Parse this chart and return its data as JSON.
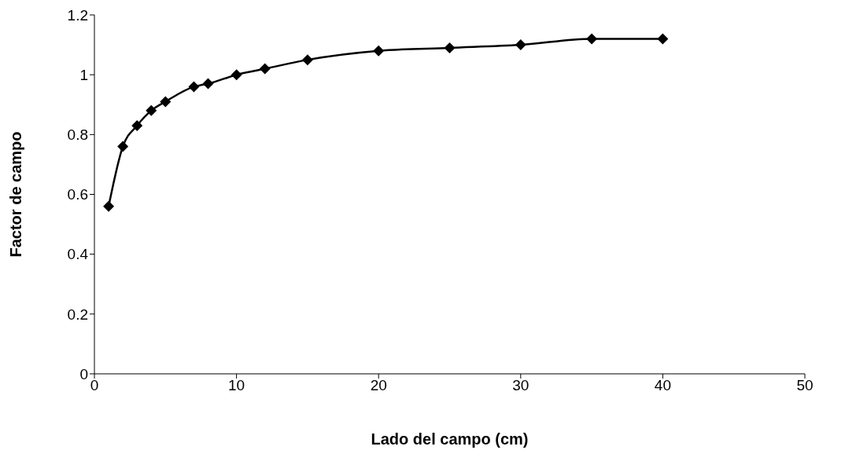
{
  "chart_data": {
    "type": "line",
    "xlabel": "Lado del campo (cm)",
    "ylabel": "Factor de campo",
    "x": [
      1,
      2,
      3,
      4,
      5,
      7,
      8,
      10,
      12,
      15,
      20,
      25,
      30,
      35,
      40
    ],
    "series": [
      {
        "color": "#000000",
        "values": [
          0.56,
          0.76,
          0.83,
          0.88,
          0.91,
          0.96,
          0.97,
          1.0,
          1.02,
          1.05,
          1.08,
          1.09,
          1.1,
          1.12,
          1.12
        ]
      }
    ],
    "xlim": [
      0,
      50
    ],
    "xticks": [
      0,
      10,
      20,
      30,
      40,
      50
    ],
    "ylim": [
      0,
      1.2
    ],
    "yticks": [
      0,
      0.2,
      0.4,
      0.6,
      0.8,
      1,
      1.2
    ],
    "grid": false,
    "legend": false,
    "marker": "diamond",
    "line_style": "solid"
  }
}
